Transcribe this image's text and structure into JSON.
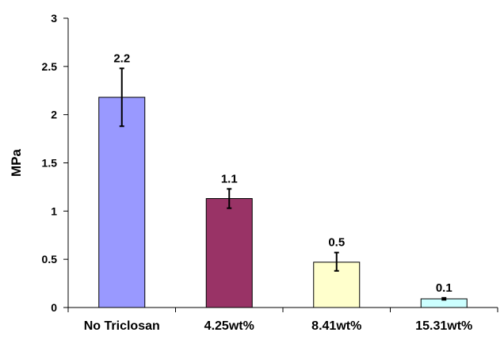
{
  "chart_data": {
    "type": "bar",
    "title": "",
    "xlabel": "",
    "ylabel": "MPa",
    "ylim": [
      0,
      3
    ],
    "yticks": [
      "0",
      "0.5",
      "1",
      "1.5",
      "2",
      "2.5",
      "3"
    ],
    "ytick_values": [
      0,
      0.5,
      1,
      1.5,
      2,
      2.5,
      3
    ],
    "categories": [
      "No Triclosan",
      "4.25wt%",
      "8.41wt%",
      "15.31wt%"
    ],
    "values": [
      2.18,
      1.13,
      0.47,
      0.09
    ],
    "data_labels": [
      "2.2",
      "1.1",
      "0.5",
      "0.1"
    ],
    "error_low": [
      1.88,
      1.03,
      0.38,
      0.08
    ],
    "error_high": [
      2.48,
      1.23,
      0.57,
      0.1
    ],
    "colors": [
      "#9999ff",
      "#993366",
      "#ffffcc",
      "#ccffff"
    ],
    "grid": false,
    "legend": "none"
  }
}
